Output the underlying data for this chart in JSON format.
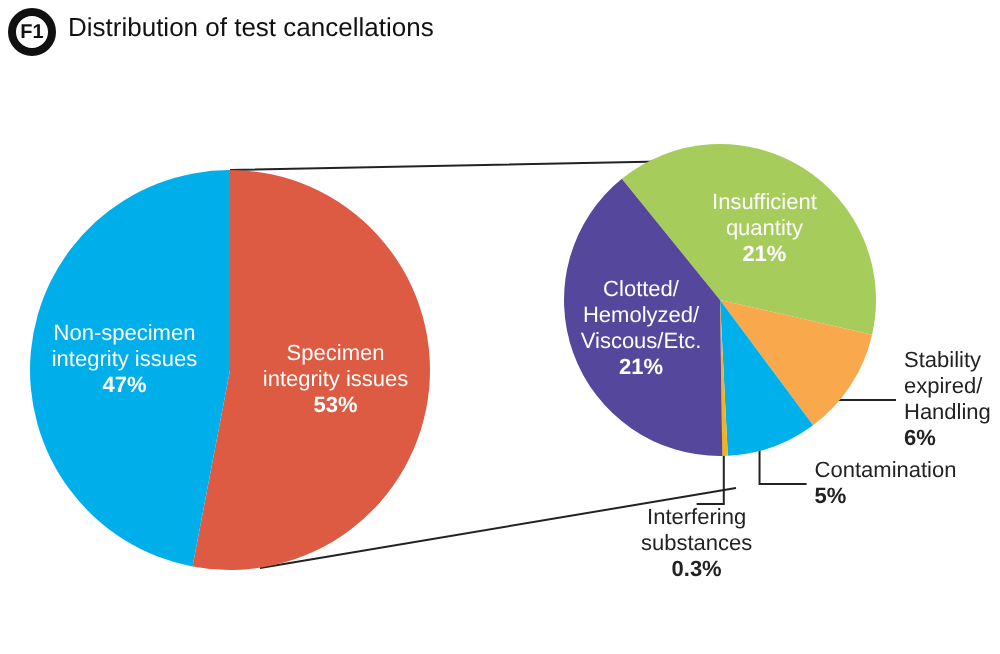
{
  "chart_data": [
    {
      "type": "pie",
      "title": "Distribution of test cancellations",
      "annotations": [
        "F1"
      ],
      "categories": [
        "Specimen\nintegrity issues",
        "Non-specimen\nintegrity issues"
      ],
      "values": [
        53,
        47
      ],
      "colors": [
        "#dd5a43",
        "#00aeea"
      ],
      "value_labels": [
        "53%",
        "47%"
      ],
      "legend": false
    },
    {
      "type": "pie",
      "categories": [
        "Insufficient\nquantity",
        "Stability\nexpired/\nHandling",
        "Contamination",
        "Interfering\nsubstances",
        "Clotted/\nHemolyzed/\nViscous/Etc."
      ],
      "values": [
        21,
        6,
        5,
        0.3,
        21
      ],
      "colors": [
        "#a6cc5c",
        "#f9a84c",
        "#00b0ea",
        "#f2b320",
        "#55479b"
      ],
      "value_labels": [
        "21%",
        "6%",
        "5%",
        "0.3%",
        "21%"
      ],
      "legend": false
    }
  ]
}
